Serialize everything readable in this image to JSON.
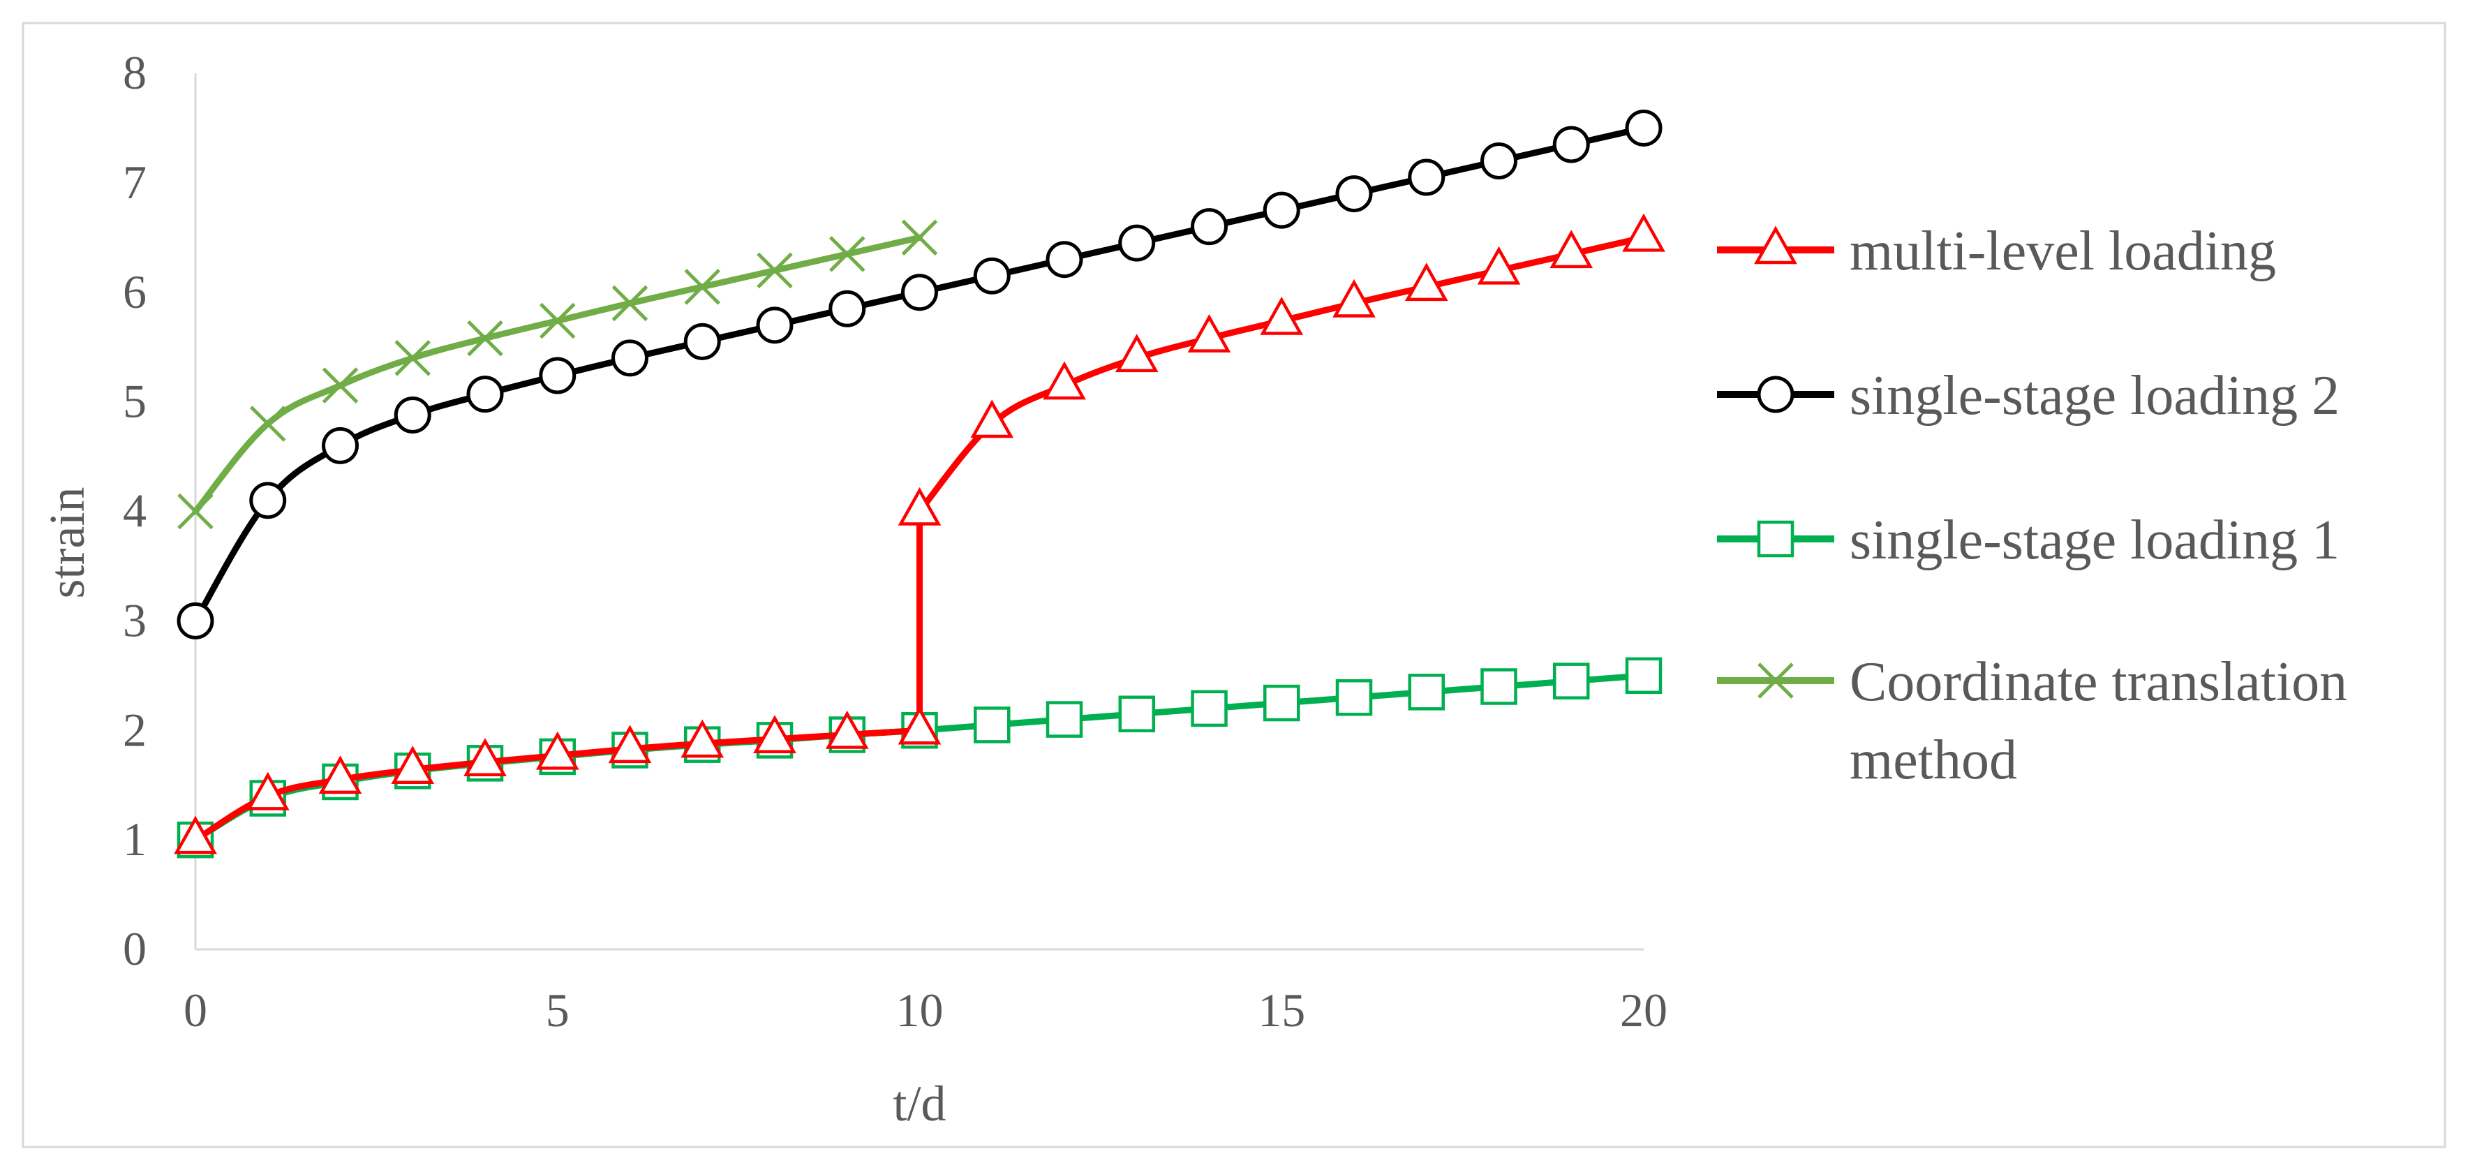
{
  "chart_data": {
    "type": "line",
    "xlabel": "t/d",
    "ylabel": "strain",
    "xlim": [
      0,
      20
    ],
    "ylim": [
      0,
      8
    ],
    "x_ticks": [
      "0",
      "5",
      "10",
      "15",
      "20"
    ],
    "y_ticks": [
      "0",
      "1",
      "2",
      "3",
      "4",
      "5",
      "6",
      "7",
      "8"
    ],
    "grid": false,
    "legend_position": "right",
    "series": [
      {
        "name": "multi-level loading",
        "color": "#ff0000",
        "marker": "triangle",
        "x": [
          0,
          1,
          2,
          3,
          4,
          5,
          6,
          7,
          8,
          9,
          10,
          10,
          11,
          12,
          13,
          14,
          15,
          16,
          17,
          18,
          19,
          20
        ],
        "y": [
          1.0,
          1.4,
          1.55,
          1.64,
          1.71,
          1.77,
          1.83,
          1.88,
          1.92,
          1.96,
          2.0,
          4.0,
          4.8,
          5.15,
          5.4,
          5.58,
          5.74,
          5.9,
          6.05,
          6.2,
          6.35,
          6.5
        ]
      },
      {
        "name": "single-stage loading 2",
        "color": "#000000",
        "marker": "circle",
        "x": [
          0,
          1,
          2,
          3,
          4,
          5,
          6,
          7,
          8,
          9,
          10,
          11,
          12,
          13,
          14,
          15,
          16,
          17,
          18,
          19,
          20
        ],
        "y": [
          3.0,
          4.1,
          4.6,
          4.88,
          5.07,
          5.24,
          5.4,
          5.55,
          5.7,
          5.85,
          6.0,
          6.15,
          6.3,
          6.45,
          6.6,
          6.75,
          6.9,
          7.05,
          7.2,
          7.35,
          7.5
        ]
      },
      {
        "name": "single-stage loading 1",
        "color": "#00b050",
        "marker": "square",
        "x": [
          0,
          1,
          2,
          3,
          4,
          5,
          6,
          7,
          8,
          9,
          10,
          11,
          12,
          13,
          14,
          15,
          16,
          17,
          18,
          19,
          20
        ],
        "y": [
          1.0,
          1.38,
          1.53,
          1.63,
          1.7,
          1.76,
          1.82,
          1.87,
          1.91,
          1.96,
          2.0,
          2.05,
          2.1,
          2.15,
          2.2,
          2.25,
          2.3,
          2.35,
          2.4,
          2.45,
          2.5
        ]
      },
      {
        "name": "Coordinate translation method",
        "color": "#70ad47",
        "marker": "x",
        "x": [
          0,
          1,
          2,
          3,
          4,
          5,
          6,
          7,
          8,
          9,
          10
        ],
        "y": [
          4.0,
          4.8,
          5.15,
          5.4,
          5.58,
          5.74,
          5.9,
          6.05,
          6.2,
          6.35,
          6.5
        ]
      }
    ],
    "legend": [
      {
        "lines": [
          "multi-level loading"
        ]
      },
      {
        "lines": [
          "single-stage loading 2"
        ]
      },
      {
        "lines": [
          "single-stage loading 1"
        ]
      },
      {
        "lines": [
          "Coordinate translation",
          "method"
        ]
      }
    ]
  }
}
